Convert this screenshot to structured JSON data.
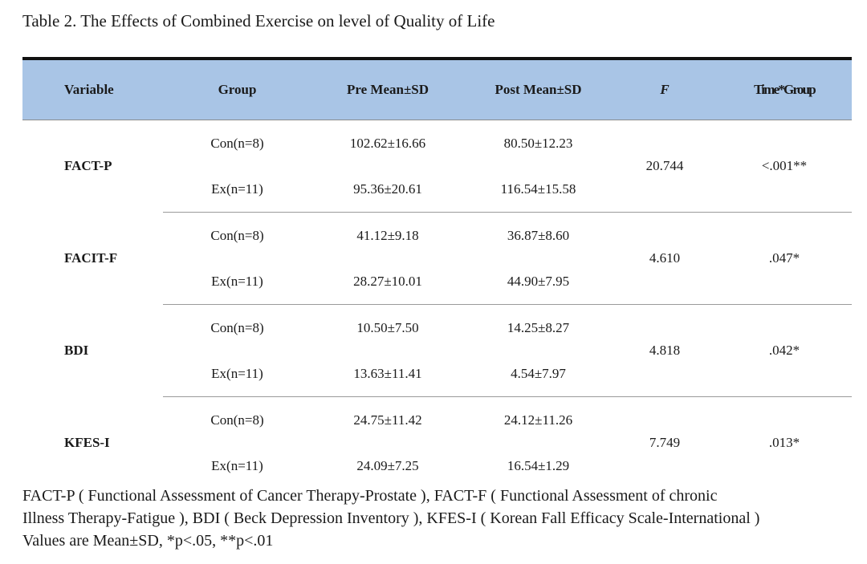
{
  "title": "Table 2. The Effects of Combined Exercise on level of Quality of Life",
  "header_color": "#a9c5e6",
  "headers": {
    "variable": "Variable",
    "group": "Group",
    "pre": "Pre Mean±SD",
    "post": "Post Mean±SD",
    "f": "F",
    "time_group": "Time*Group"
  },
  "rows": [
    {
      "variable": "FACT-P",
      "f": "20.744",
      "p": "<.001**",
      "groups": [
        {
          "group": "Con(n=8)",
          "pre": "102.62±16.66",
          "post": "80.50±12.23"
        },
        {
          "group": "Ex(n=11)",
          "pre": "95.36±20.61",
          "post": "116.54±15.58"
        }
      ]
    },
    {
      "variable": "FACIT-F",
      "f": "4.610",
      "p": ".047*",
      "groups": [
        {
          "group": "Con(n=8)",
          "pre": "41.12±9.18",
          "post": "36.87±8.60"
        },
        {
          "group": "Ex(n=11)",
          "pre": "28.27±10.01",
          "post": "44.90±7.95"
        }
      ]
    },
    {
      "variable": "BDI",
      "f": "4.818",
      "p": ".042*",
      "groups": [
        {
          "group": "Con(n=8)",
          "pre": "10.50±7.50",
          "post": "14.25±8.27"
        },
        {
          "group": "Ex(n=11)",
          "pre": "13.63±11.41",
          "post": "4.54±7.97"
        }
      ]
    },
    {
      "variable": "KFES-I",
      "f": "7.749",
      "p": ".013*",
      "groups": [
        {
          "group": "Con(n=8)",
          "pre": "24.75±11.42",
          "post": "24.12±11.26"
        },
        {
          "group": "Ex(n=11)",
          "pre": "24.09±7.25",
          "post": "16.54±1.29"
        }
      ]
    }
  ],
  "footnote": {
    "line1": "FACT-P ( Functional Assessment of Cancer Therapy-Prostate ), FACT-F ( Functional Assessment of chronic",
    "line2": "Illness Therapy-Fatigue ), BDI ( Beck Depression Inventory ), KFES-I ( Korean Fall Efficacy Scale-International )",
    "line3": "Values are Mean±SD, *p<.05, **p<.01"
  }
}
